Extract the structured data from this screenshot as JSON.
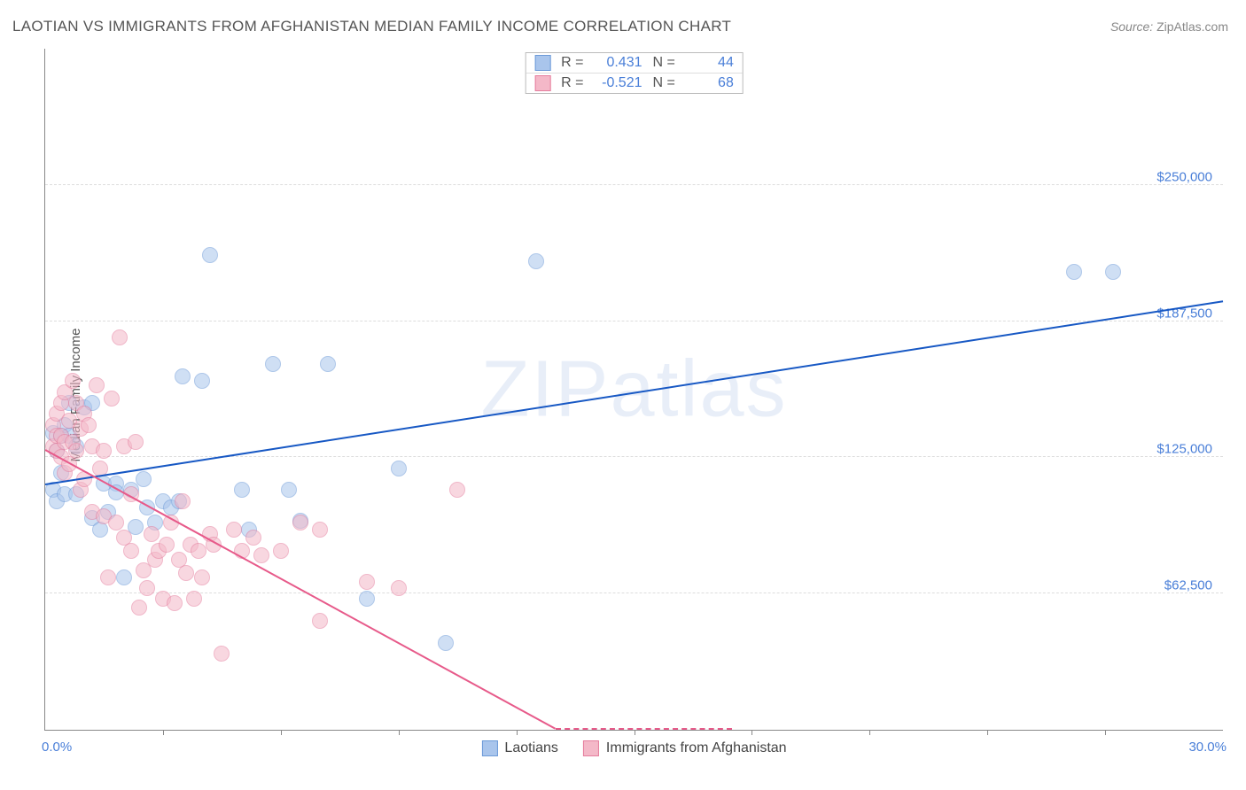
{
  "title": "LAOTIAN VS IMMIGRANTS FROM AFGHANISTAN MEDIAN FAMILY INCOME CORRELATION CHART",
  "source": {
    "label": "Source: ",
    "value": "ZipAtlas.com"
  },
  "ylabel": "Median Family Income",
  "watermark": "ZIPatlas",
  "chart": {
    "type": "scatter",
    "xlim": [
      0,
      30
    ],
    "ylim": [
      0,
      312500
    ],
    "x_axis_label_left": "0.0%",
    "x_axis_label_right": "30.0%",
    "y_ticks": [
      62500,
      125000,
      187500,
      250000
    ],
    "y_tick_labels": [
      "$62,500",
      "$125,000",
      "$187,500",
      "$250,000"
    ],
    "x_ticks_minor": [
      3,
      6,
      9,
      12,
      15,
      18,
      21,
      24,
      27
    ],
    "grid_color": "#dddddd",
    "axis_color": "#888888",
    "background_color": "#ffffff",
    "point_radius": 9,
    "point_opacity": 0.55,
    "series": [
      {
        "name": "Laotians",
        "fill": "#a9c5ec",
        "stroke": "#6c9ad8",
        "R": "0.431",
        "N": "44",
        "trend": {
          "x1": 0,
          "y1": 112000,
          "x2": 30,
          "y2": 196000,
          "color": "#1758c4",
          "width": 2
        },
        "points": [
          [
            0.2,
            110000
          ],
          [
            0.2,
            136000
          ],
          [
            0.3,
            105000
          ],
          [
            0.3,
            128000
          ],
          [
            0.4,
            118000
          ],
          [
            0.4,
            135000
          ],
          [
            0.5,
            140000
          ],
          [
            0.5,
            108000
          ],
          [
            0.6,
            135000
          ],
          [
            0.6,
            150000
          ],
          [
            0.8,
            108000
          ],
          [
            0.8,
            130000
          ],
          [
            1.0,
            148000
          ],
          [
            1.2,
            97000
          ],
          [
            1.2,
            150000
          ],
          [
            1.4,
            92000
          ],
          [
            1.5,
            113000
          ],
          [
            1.6,
            100000
          ],
          [
            1.8,
            113000
          ],
          [
            1.8,
            109000
          ],
          [
            2.0,
            70000
          ],
          [
            2.2,
            110000
          ],
          [
            2.3,
            93000
          ],
          [
            2.5,
            115000
          ],
          [
            2.6,
            102000
          ],
          [
            2.8,
            95000
          ],
          [
            3.0,
            105000
          ],
          [
            3.2,
            102000
          ],
          [
            3.4,
            105000
          ],
          [
            3.5,
            162000
          ],
          [
            4.0,
            160000
          ],
          [
            4.2,
            218000
          ],
          [
            5.0,
            110000
          ],
          [
            5.2,
            92000
          ],
          [
            5.8,
            168000
          ],
          [
            6.2,
            110000
          ],
          [
            6.5,
            96000
          ],
          [
            7.2,
            168000
          ],
          [
            8.2,
            60000
          ],
          [
            9.0,
            120000
          ],
          [
            10.2,
            40000
          ],
          [
            12.5,
            215000
          ],
          [
            26.2,
            210000
          ],
          [
            27.2,
            210000
          ]
        ]
      },
      {
        "name": "Immigants from Afghanistan",
        "display_name": "Immigrants from Afghanistan",
        "fill": "#f4b8c8",
        "stroke": "#e57d9d",
        "R": "-0.521",
        "N": "68",
        "trend": {
          "x1": 0,
          "y1": 128000,
          "x2": 13,
          "y2": 0,
          "color": "#e75a8a",
          "width": 2,
          "dashed_after_x": 13,
          "x2_dash": 17.5
        },
        "points": [
          [
            0.2,
            140000
          ],
          [
            0.2,
            130000
          ],
          [
            0.3,
            135000
          ],
          [
            0.3,
            128000
          ],
          [
            0.3,
            145000
          ],
          [
            0.4,
            150000
          ],
          [
            0.4,
            135000
          ],
          [
            0.4,
            125000
          ],
          [
            0.5,
            155000
          ],
          [
            0.5,
            118000
          ],
          [
            0.5,
            132000
          ],
          [
            0.6,
            142000
          ],
          [
            0.6,
            122000
          ],
          [
            0.7,
            160000
          ],
          [
            0.7,
            132000
          ],
          [
            0.8,
            150000
          ],
          [
            0.8,
            128000
          ],
          [
            0.9,
            138000
          ],
          [
            0.9,
            110000
          ],
          [
            1.0,
            145000
          ],
          [
            1.0,
            115000
          ],
          [
            1.1,
            140000
          ],
          [
            1.2,
            100000
          ],
          [
            1.2,
            130000
          ],
          [
            1.3,
            158000
          ],
          [
            1.4,
            120000
          ],
          [
            1.5,
            128000
          ],
          [
            1.5,
            98000
          ],
          [
            1.6,
            70000
          ],
          [
            1.7,
            152000
          ],
          [
            1.8,
            95000
          ],
          [
            1.9,
            180000
          ],
          [
            2.0,
            88000
          ],
          [
            2.0,
            130000
          ],
          [
            2.2,
            82000
          ],
          [
            2.2,
            108000
          ],
          [
            2.3,
            132000
          ],
          [
            2.4,
            56000
          ],
          [
            2.5,
            73000
          ],
          [
            2.6,
            65000
          ],
          [
            2.7,
            90000
          ],
          [
            2.8,
            78000
          ],
          [
            2.9,
            82000
          ],
          [
            3.0,
            60000
          ],
          [
            3.1,
            85000
          ],
          [
            3.2,
            95000
          ],
          [
            3.3,
            58000
          ],
          [
            3.4,
            78000
          ],
          [
            3.5,
            105000
          ],
          [
            3.6,
            72000
          ],
          [
            3.7,
            85000
          ],
          [
            3.8,
            60000
          ],
          [
            3.9,
            82000
          ],
          [
            4.0,
            70000
          ],
          [
            4.2,
            90000
          ],
          [
            4.3,
            85000
          ],
          [
            4.5,
            35000
          ],
          [
            4.8,
            92000
          ],
          [
            5.0,
            82000
          ],
          [
            5.3,
            88000
          ],
          [
            5.5,
            80000
          ],
          [
            6.0,
            82000
          ],
          [
            6.5,
            95000
          ],
          [
            7.0,
            92000
          ],
          [
            8.2,
            68000
          ],
          [
            9.0,
            65000
          ],
          [
            10.5,
            110000
          ],
          [
            7.0,
            50000
          ]
        ]
      }
    ],
    "stats_legend": {
      "border_color": "#bbbbbb",
      "labels": {
        "R": "R  =",
        "N": "N  ="
      }
    },
    "bottom_legend": {
      "items": [
        "Laotians",
        "Immigrants from Afghanistan"
      ]
    }
  }
}
